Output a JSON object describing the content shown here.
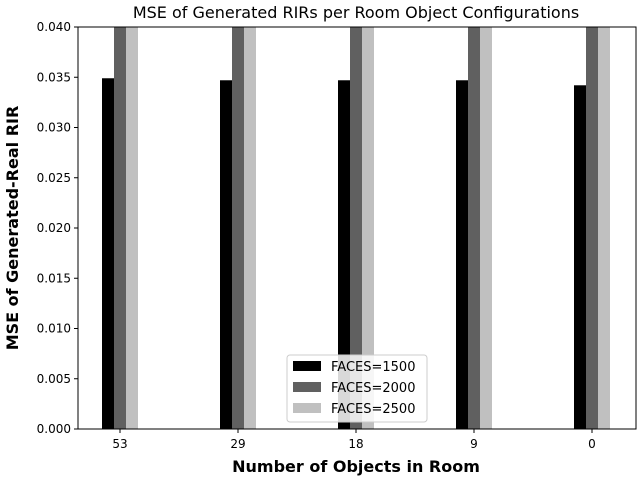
{
  "chart_data": {
    "type": "bar",
    "title": "MSE of Generated RIRs per Room Object Configurations",
    "xlabel": "Number of Objects in Room",
    "ylabel": "MSE of Generated-Real RIR",
    "categories": [
      "53",
      "29",
      "18",
      "9",
      "0"
    ],
    "ylim": [
      0,
      0.04
    ],
    "yticks": [
      "0.000",
      "0.005",
      "0.010",
      "0.015",
      "0.020",
      "0.025",
      "0.030",
      "0.035",
      "0.040"
    ],
    "grid": false,
    "legend_position": "lower-center",
    "series": [
      {
        "name": "FACES=1500",
        "color": "#000000",
        "values": [
          0.0349,
          0.0347,
          0.0347,
          0.0347,
          0.0342
        ]
      },
      {
        "name": "FACES=2000",
        "color": "#606060",
        "values": [
          0.0405,
          0.0405,
          0.0405,
          0.0405,
          0.0405
        ]
      },
      {
        "name": "FACES=2500",
        "color": "#c0c0c0",
        "values": [
          0.0405,
          0.0405,
          0.0405,
          0.0405,
          0.0405
        ]
      }
    ]
  }
}
